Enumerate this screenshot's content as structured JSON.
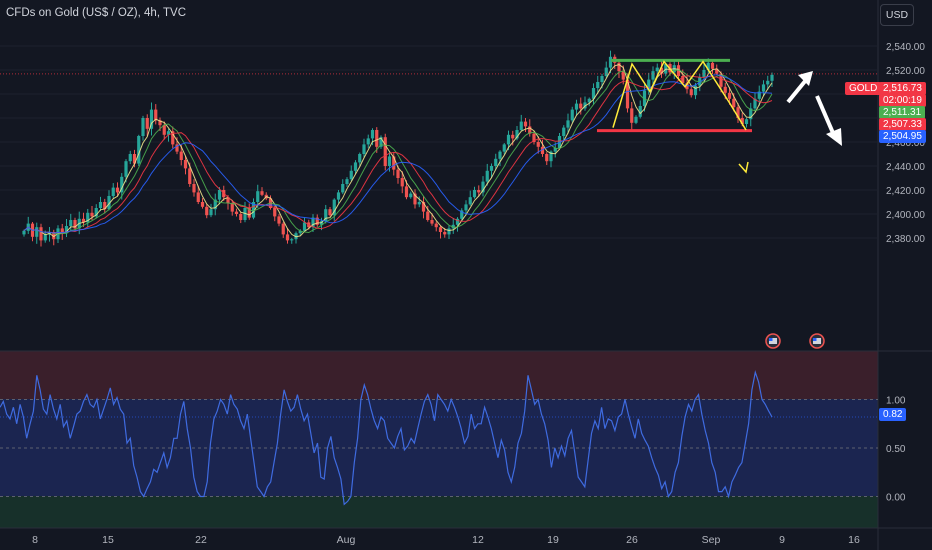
{
  "header": {
    "title": "CFDs on Gold (US$ / OZ), 4h, TVC",
    "currency_button": "USD"
  },
  "price_axis": {
    "ticks": [
      "2,540.00",
      "2,520.00",
      "2,500.00",
      "2,480.00",
      "2,460.00",
      "2,440.00",
      "2,420.00",
      "2,400.00",
      "2,380.00"
    ],
    "symbol_tag": "GOLD",
    "last_price": "2,516.73",
    "countdown": "02:00:19",
    "ma_tags": [
      {
        "label": "2,511.31",
        "color": "#4caf50"
      },
      {
        "label": "2,507.33",
        "color": "#f23645"
      },
      {
        "label": "2,504.95",
        "color": "#2962ff"
      }
    ]
  },
  "oscillator": {
    "ticks": [
      "1.00",
      "0.50",
      "0.00"
    ],
    "current_label": "0.82",
    "current_value": 0.82,
    "line_color": "#3f6be0",
    "values": [
      0.92,
      0.98,
      0.85,
      0.8,
      0.92,
      0.75,
      0.95,
      0.82,
      0.6,
      0.75,
      0.88,
      1.25,
      1.1,
      0.9,
      0.85,
      1.05,
      0.9,
      0.8,
      0.95,
      0.72,
      0.78,
      0.6,
      0.72,
      0.85,
      0.88,
      0.98,
      1.05,
      0.95,
      0.92,
      1.0,
      0.8,
      0.9,
      1.0,
      1.12,
      0.95,
      1.02,
      0.9,
      0.85,
      0.55,
      0.6,
      0.32,
      0.2,
      0.05,
      0.0,
      0.08,
      0.15,
      0.28,
      0.25,
      0.35,
      0.45,
      0.3,
      0.4,
      0.6,
      0.6,
      0.85,
      0.98,
      0.7,
      0.5,
      0.2,
      0.05,
      0.0,
      0.0,
      0.15,
      0.55,
      0.8,
      0.88,
      1.0,
      0.95,
      0.85,
      1.05,
      0.95,
      0.9,
      0.78,
      0.7,
      0.85,
      0.6,
      0.35,
      0.1,
      0.05,
      0.0,
      0.1,
      0.15,
      0.35,
      0.55,
      0.85,
      1.1,
      0.98,
      0.88,
      0.92,
      1.05,
      0.9,
      0.78,
      0.85,
      0.65,
      0.45,
      0.55,
      0.2,
      0.18,
      0.5,
      0.62,
      0.4,
      0.3,
      0.18,
      -0.08,
      -0.05,
      0.0,
      0.35,
      0.6,
      1.0,
      1.15,
      1.05,
      0.9,
      0.78,
      0.7,
      0.82,
      0.78,
      0.6,
      0.55,
      0.5,
      0.62,
      0.7,
      0.48,
      0.52,
      0.6,
      0.55,
      0.7,
      0.85,
      0.98,
      1.05,
      0.95,
      0.78,
      1.05,
      1.0,
      0.95,
      0.88,
      1.0,
      0.92,
      0.82,
      0.7,
      0.55,
      0.62,
      0.85,
      0.7,
      0.75,
      0.75,
      0.92,
      0.82,
      0.7,
      0.55,
      0.4,
      0.58,
      0.48,
      0.25,
      0.15,
      0.3,
      0.55,
      0.65,
      0.88,
      1.25,
      1.1,
      0.95,
      1.0,
      0.85,
      0.75,
      0.58,
      0.3,
      0.5,
      0.4,
      0.52,
      0.42,
      0.6,
      0.68,
      0.45,
      0.2,
      0.15,
      0.1,
      0.38,
      0.65,
      0.78,
      0.7,
      0.92,
      0.7,
      0.8,
      0.78,
      0.68,
      0.82,
      0.85,
      1.0,
      0.85,
      0.72,
      0.6,
      0.8,
      0.65,
      0.58,
      0.52,
      0.4,
      0.3,
      0.22,
      0.08,
      0.15,
      0.0,
      0.05,
      0.25,
      0.35,
      0.62,
      0.82,
      0.95,
      0.88,
      1.0,
      1.05,
      0.85,
      0.68,
      0.55,
      0.35,
      0.25,
      0.05,
      0.05,
      0.1,
      0.0,
      0.15,
      0.22,
      0.3,
      0.35,
      0.55,
      0.75,
      1.1,
      1.28,
      1.18,
      1.0,
      0.95,
      0.88,
      0.82
    ]
  },
  "time_axis": {
    "labels": [
      "8",
      "15",
      "22",
      "Aug",
      "12",
      "19",
      "26",
      "Sep",
      "9",
      "16"
    ]
  },
  "colors": {
    "up_candle": "#26a69a",
    "down_candle": "#ef5350",
    "background": "#131722",
    "ma_green": "#4caf50",
    "ma_red": "#f23645",
    "ma_blue": "#2962ff",
    "ma_yellow": "#f0e68c",
    "resistance_line": "#4caf50",
    "support_line": "#f23645",
    "pattern_zigzag": "#ffeb3b"
  },
  "annotations": {
    "resistance_price": 2528,
    "support_price": 2469.5,
    "zigzag_prices": [
      2472,
      2525,
      2502,
      2527,
      2506,
      2527,
      2492,
      2470
    ],
    "forecast_arrows": [
      "up",
      "down"
    ]
  },
  "price_candles": [
    2386,
    2392,
    2381,
    2389,
    2378,
    2383,
    2385,
    2379,
    2388,
    2384,
    2390,
    2395,
    2388,
    2396,
    2393,
    2401,
    2398,
    2405,
    2410,
    2404,
    2415,
    2422,
    2418,
    2431,
    2444,
    2450,
    2442,
    2465,
    2480,
    2471,
    2487,
    2478,
    2474,
    2466,
    2469,
    2458,
    2452,
    2445,
    2438,
    2425,
    2418,
    2410,
    2406,
    2399,
    2404,
    2412,
    2420,
    2414,
    2409,
    2402,
    2400,
    2395,
    2405,
    2397,
    2410,
    2419,
    2416,
    2413,
    2405,
    2398,
    2392,
    2383,
    2378,
    2379,
    2384,
    2386,
    2393,
    2389,
    2397,
    2391,
    2394,
    2404,
    2399,
    2412,
    2418,
    2425,
    2429,
    2436,
    2443,
    2450,
    2458,
    2463,
    2470,
    2456,
    2464,
    2440,
    2448,
    2437,
    2430,
    2423,
    2414,
    2417,
    2408,
    2410,
    2402,
    2395,
    2392,
    2389,
    2385,
    2383,
    2388,
    2391,
    2396,
    2403,
    2408,
    2414,
    2420,
    2418,
    2427,
    2436,
    2440,
    2446,
    2452,
    2458,
    2466,
    2463,
    2470,
    2477,
    2473,
    2467,
    2460,
    2456,
    2450,
    2444,
    2452,
    2455,
    2465,
    2472,
    2478,
    2487,
    2492,
    2488,
    2493,
    2496,
    2505,
    2510,
    2515,
    2522,
    2531,
    2526,
    2519,
    2512,
    2488,
    2476,
    2481,
    2490,
    2503,
    2512,
    2519,
    2522,
    2517,
    2525,
    2518,
    2524,
    2515,
    2509,
    2504,
    2499,
    2507,
    2514,
    2520,
    2526,
    2521,
    2517,
    2506,
    2501,
    2496,
    2489,
    2480,
    2475,
    2479,
    2488,
    2496,
    2502,
    2508,
    2511,
    2516
  ]
}
